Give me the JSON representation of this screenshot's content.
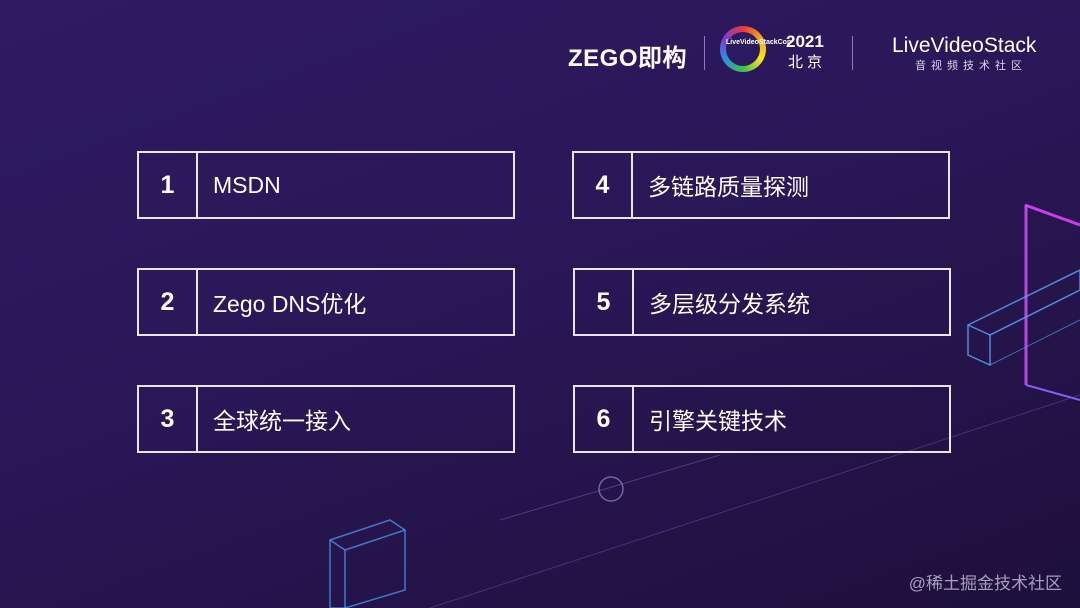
{
  "header": {
    "zego_logo": "ZEGO即构",
    "event_badge": "LiveVideoStackCon",
    "event_year": "2021",
    "event_city": "北京",
    "community_logo": "LiveVideoStack",
    "community_subtitle": "音视频技术社区"
  },
  "items": [
    {
      "num": "1",
      "label": "MSDN"
    },
    {
      "num": "2",
      "label": "Zego DNS优化"
    },
    {
      "num": "3",
      "label": "全球统一接入"
    },
    {
      "num": "4",
      "label": "多链路质量探测"
    },
    {
      "num": "5",
      "label": "多层级分发系统"
    },
    {
      "num": "6",
      "label": "引擎关键技术"
    }
  ],
  "watermark": "@稀土掘金技术社区",
  "colors": {
    "background": "#2a1758",
    "box_border": "#e9e4f3",
    "neon_pink": "#e040fb",
    "neon_blue": "#4fa3ff"
  }
}
